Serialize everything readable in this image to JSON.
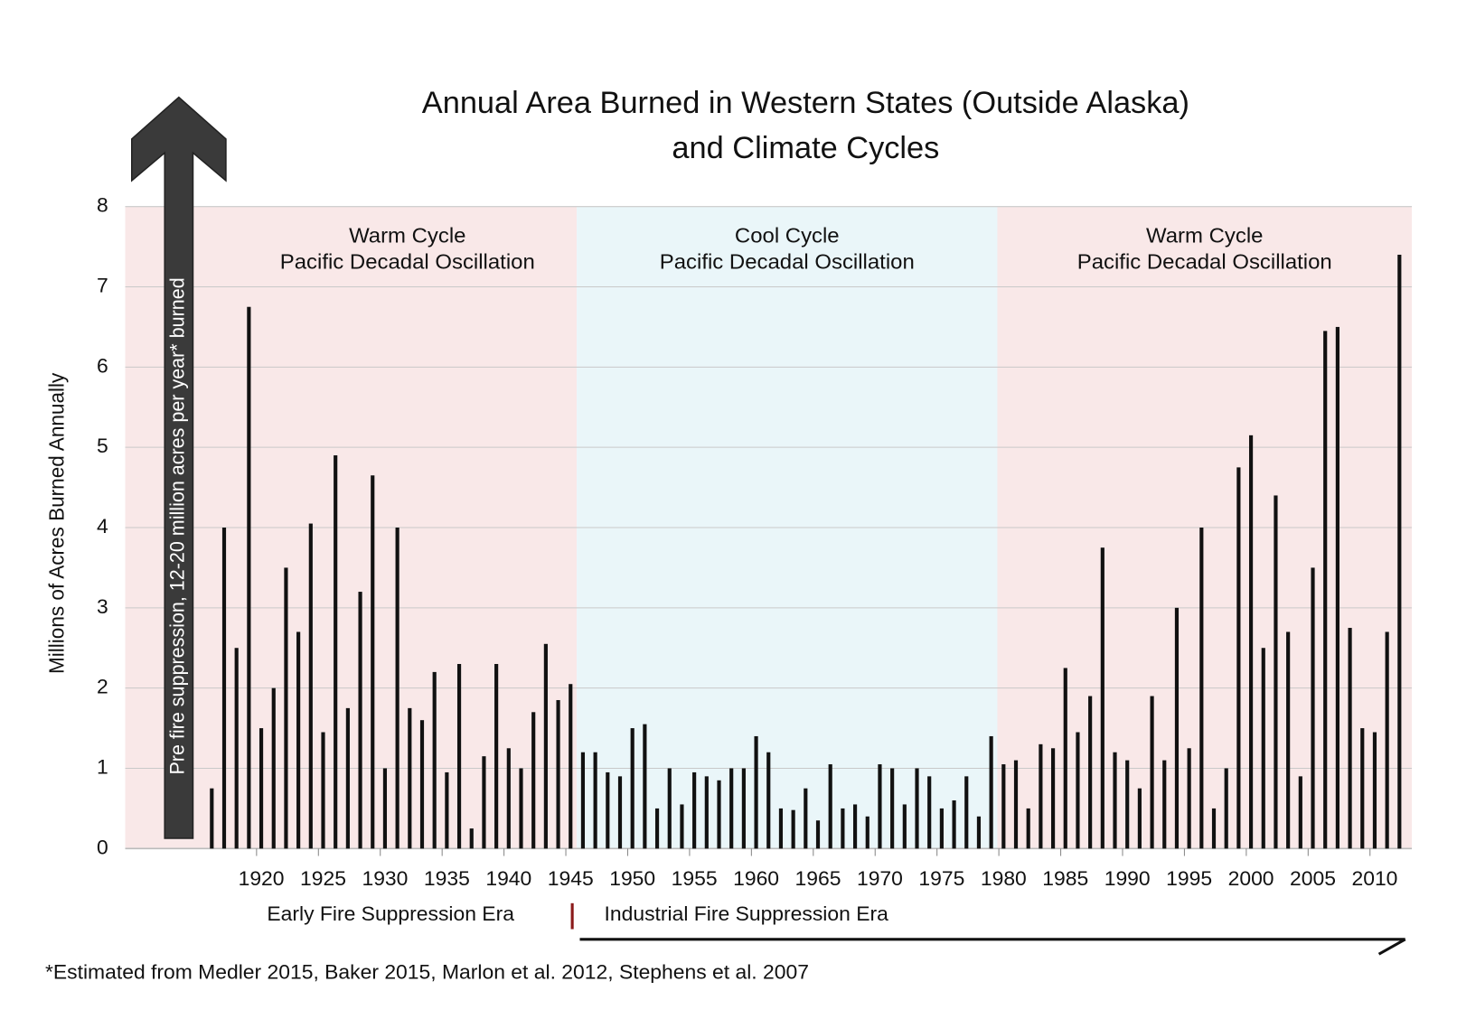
{
  "chart_data": {
    "type": "bar",
    "title": [
      "Annual Area Burned in Western States (Outside Alaska)",
      "and Climate Cycles"
    ],
    "y_label": "Millions of Acres Burned Annually",
    "arrow_label": "Pre fire suppression, 12-20 million acres per year* burned",
    "eras": [
      "Early Fire Suppression Era",
      "Industrial Fire Suppression Era"
    ],
    "footnote": "*Estimated from Medler 2015, Baker 2015, Marlon et al. 2012, Stephens et al. 2007",
    "regions": [
      {
        "label": [
          "Warm Cycle",
          "Pacific Decadal Oscillation"
        ],
        "start": 1909,
        "end": 1945.5,
        "color": "#f9e8e8"
      },
      {
        "label": [
          "Cool Cycle",
          "Pacific Decadal Oscillation"
        ],
        "start": 1945.5,
        "end": 1979.5,
        "color": "#eaf6f9"
      },
      {
        "label": [
          "Warm Cycle",
          "Pacific Decadal Oscillation"
        ],
        "start": 1979.5,
        "end": 2013,
        "color": "#f9e8e8"
      }
    ],
    "x": [
      1916,
      1917,
      1918,
      1919,
      1920,
      1921,
      1922,
      1923,
      1924,
      1925,
      1926,
      1927,
      1928,
      1929,
      1930,
      1931,
      1932,
      1933,
      1934,
      1935,
      1936,
      1937,
      1938,
      1939,
      1940,
      1941,
      1942,
      1943,
      1944,
      1945,
      1946,
      1947,
      1948,
      1949,
      1950,
      1951,
      1952,
      1953,
      1954,
      1955,
      1956,
      1957,
      1958,
      1959,
      1960,
      1961,
      1962,
      1963,
      1964,
      1965,
      1966,
      1967,
      1968,
      1969,
      1970,
      1971,
      1972,
      1973,
      1974,
      1975,
      1976,
      1977,
      1978,
      1979,
      1980,
      1981,
      1982,
      1983,
      1984,
      1985,
      1986,
      1987,
      1988,
      1989,
      1990,
      1991,
      1992,
      1993,
      1994,
      1995,
      1996,
      1997,
      1998,
      1999,
      2000,
      2001,
      2002,
      2003,
      2004,
      2005,
      2006,
      2007,
      2008,
      2009,
      2010,
      2011,
      2012
    ],
    "values": [
      0.75,
      4.0,
      2.5,
      6.75,
      1.5,
      2.0,
      3.5,
      2.7,
      4.05,
      1.45,
      4.9,
      1.75,
      3.2,
      4.65,
      1.0,
      4.0,
      1.75,
      1.6,
      2.2,
      0.95,
      2.3,
      0.25,
      1.15,
      2.3,
      1.25,
      1.0,
      1.7,
      2.55,
      1.85,
      2.05,
      1.2,
      1.2,
      0.95,
      0.9,
      1.5,
      1.55,
      0.5,
      1.0,
      0.55,
      0.95,
      0.9,
      0.85,
      1.0,
      1.0,
      1.4,
      1.2,
      0.5,
      0.48,
      0.75,
      0.35,
      1.05,
      0.5,
      0.55,
      0.4,
      1.05,
      1.0,
      0.55,
      1.0,
      0.9,
      0.5,
      0.6,
      0.9,
      0.4,
      1.4,
      1.05,
      1.1,
      0.5,
      1.3,
      1.25,
      2.25,
      1.45,
      1.9,
      3.75,
      1.2,
      1.1,
      0.75,
      1.9,
      1.1,
      3.0,
      1.25,
      4.0,
      0.5,
      1.0,
      4.75,
      5.15,
      2.5,
      4.4,
      2.7,
      0.9,
      3.5,
      6.45,
      6.5,
      2.75,
      1.5,
      1.45,
      2.7,
      7.4
    ],
    "color": "#111111",
    "xlim": [
      1909,
      2013
    ],
    "xticks": [
      1920,
      1925,
      1930,
      1935,
      1940,
      1945,
      1950,
      1955,
      1960,
      1965,
      1970,
      1975,
      1980,
      1985,
      1990,
      1995,
      2000,
      2005,
      2010
    ],
    "ylim": [
      0,
      8
    ],
    "yticks": [
      0,
      1,
      2,
      3,
      4,
      5,
      6,
      7,
      8
    ],
    "grid": true
  }
}
